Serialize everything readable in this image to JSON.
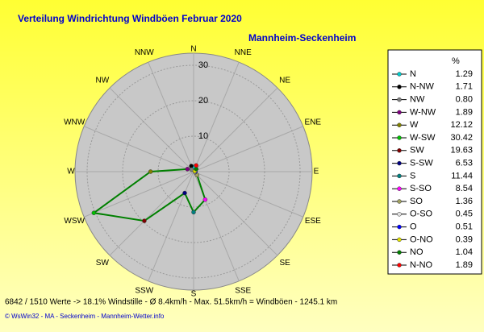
{
  "chart_data": {
    "type": "radar",
    "title": "Verteilung Windrichtung Windböen  Februar 2020",
    "subtitle": "Mannheim-Seckenheim",
    "categories": [
      "N",
      "NNE",
      "NE",
      "ENE",
      "E",
      "ESE",
      "SE",
      "SSE",
      "S",
      "SSW",
      "SW",
      "WSW",
      "W",
      "WNW",
      "NW",
      "NNW"
    ],
    "legend_title": "%",
    "series": [
      {
        "color": "#008000",
        "names": [
          "N",
          "N-NW",
          "NW",
          "W-NW",
          "W",
          "W-SW",
          "SW",
          "S-SW",
          "S",
          "S-SO",
          "SO",
          "O-SO",
          "O",
          "O-NO",
          "NO",
          "N-NO"
        ],
        "values": [
          1.29,
          1.71,
          0.8,
          1.89,
          12.12,
          30.42,
          19.63,
          6.53,
          11.44,
          8.54,
          1.36,
          0.45,
          0.51,
          0.39,
          1.04,
          1.89
        ],
        "value_labels": [
          "1.29",
          "1.71",
          "0.80",
          "1.89",
          "12.12",
          "30.42",
          "19.63",
          "6.53",
          "11.44",
          "8.54",
          "1.36",
          "0.45",
          "0.51",
          "0.39",
          "1.04",
          "1.89"
        ],
        "marker_colors": [
          "#00cccc",
          "#000000",
          "#808080",
          "#800080",
          "#808000",
          "#00c000",
          "#800000",
          "#000080",
          "#008080",
          "#ff00ff",
          "#a0a060",
          "#e0e0e0",
          "#0000ff",
          "#e0e000",
          "#008000",
          "#ff0000"
        ]
      }
    ],
    "rlim": [
      0,
      30
    ],
    "rticks": [
      10,
      20,
      30
    ],
    "grid": true,
    "stats": "6842 / 1510 Werte  -> 18.1% Windstille   -   Ø 8.4km/h  -  Max. 51.5km/h = Windböen   -   1245.1 km",
    "footer": "© WsWin32  -  MA - Seckenheim  -  Mannheim-Wetter.info"
  }
}
